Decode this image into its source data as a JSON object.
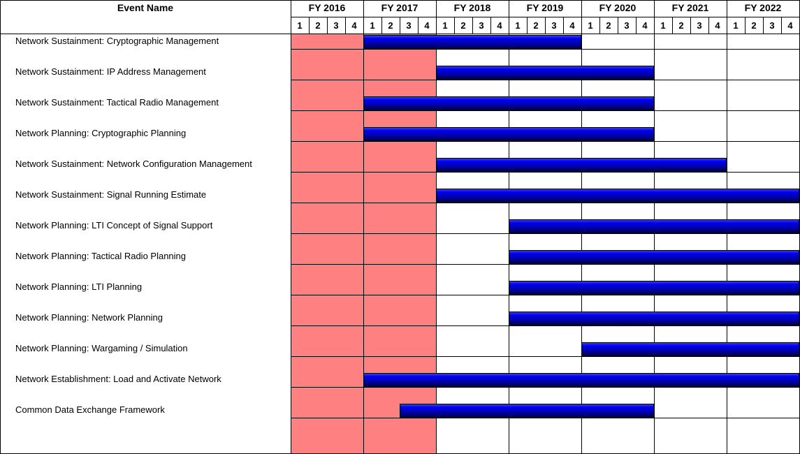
{
  "chart_data": {
    "type": "gantt",
    "header": {
      "event_column": "Event Name"
    },
    "fiscal_years": [
      "FY 2016",
      "FY 2017",
      "FY 2018",
      "FY 2019",
      "FY 2020",
      "FY 2021",
      "FY 2022"
    ],
    "quarters": [
      "1",
      "2",
      "3",
      "4"
    ],
    "highlight": {
      "color": "#ff8080",
      "ranges": [
        [
          "FY 2016 Q1",
          "FY 2017 Q4"
        ]
      ]
    },
    "bar_color": "#0000cc",
    "tasks": [
      {
        "name": "Network Sustainment: Cryptographic Management",
        "start": "FY 2017 Q1",
        "end": "FY 2019 Q4"
      },
      {
        "name": "Network Sustainment: IP Address Management",
        "start": "FY 2018 Q1",
        "end": "FY 2020 Q4"
      },
      {
        "name": "Network Sustainment: Tactical Radio Management",
        "start": "FY 2017 Q1",
        "end": "FY 2020 Q4"
      },
      {
        "name": "Network Planning: Cryptographic Planning",
        "start": "FY 2017 Q1",
        "end": "FY 2020 Q4"
      },
      {
        "name": "Network Sustainment: Network Configuration Management",
        "start": "FY 2018 Q1",
        "end": "FY 2021 Q4"
      },
      {
        "name": "Network Sustainment: Signal Running Estimate",
        "start": "FY 2018 Q1",
        "end": "FY 2022 Q4"
      },
      {
        "name": "Network Planning: LTI Concept of Signal Support",
        "start": "FY 2019 Q1",
        "end": "FY 2022 Q4"
      },
      {
        "name": "Network Planning: Tactical Radio Planning",
        "start": "FY 2019 Q1",
        "end": "FY 2022 Q4"
      },
      {
        "name": "Network Planning: LTI Planning",
        "start": "FY 2019 Q1",
        "end": "FY 2022 Q4"
      },
      {
        "name": "Network Planning: Network Planning",
        "start": "FY 2019 Q1",
        "end": "FY 2022 Q4"
      },
      {
        "name": "Network Planning: Wargaming / Simulation",
        "start": "FY 2020 Q1",
        "end": "FY 2022 Q4"
      },
      {
        "name": "Network Establishment: Load and Activate Network",
        "start": "FY 2017 Q1",
        "end": "FY 2022 Q4"
      },
      {
        "name": "Common Data Exchange Framework",
        "start": "FY 2017 Q3",
        "end": "FY 2020 Q4"
      }
    ]
  }
}
